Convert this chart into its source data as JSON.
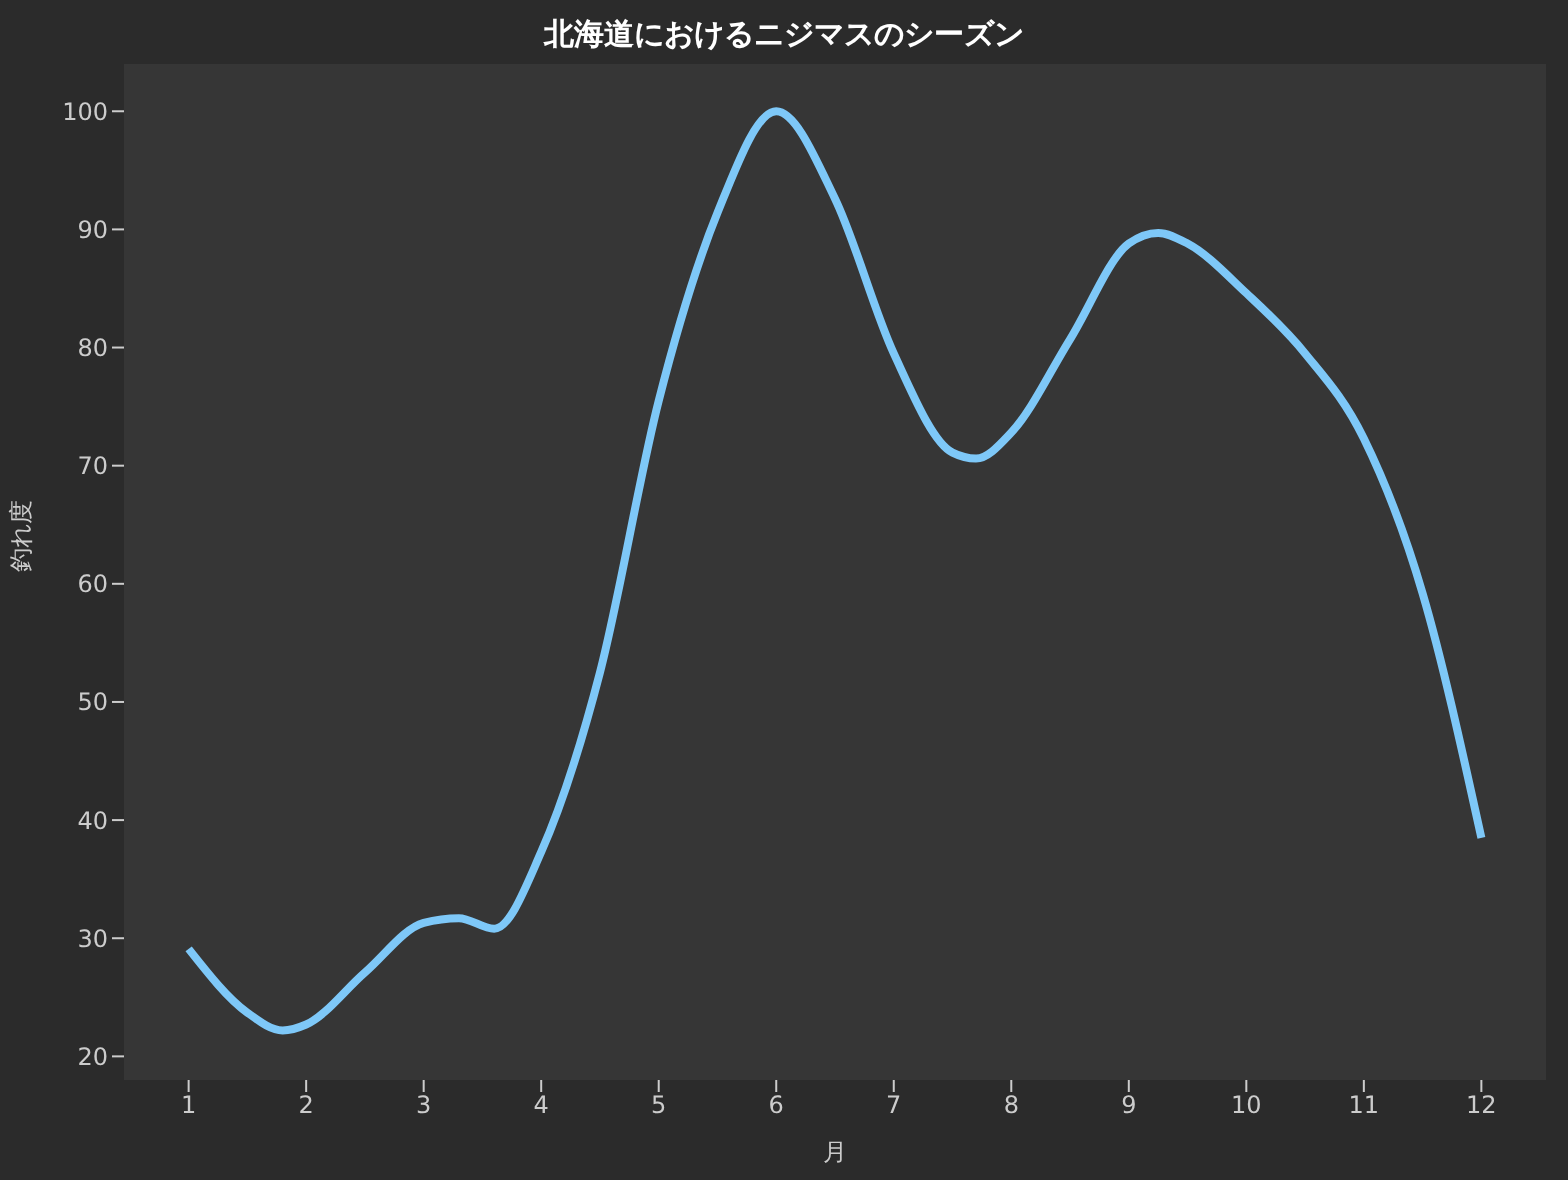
{
  "chart_data": {
    "type": "line",
    "title": "北海道におけるニジマスのシーズン",
    "xlabel": "月",
    "ylabel": "釣れ度",
    "x": [
      1,
      1.5,
      1.8,
      2,
      2.5,
      3,
      3.3,
      3.6,
      4,
      4.5,
      5,
      5.5,
      6,
      6.5,
      7,
      7.5,
      7.7,
      8,
      8.5,
      9,
      9.25,
      9.5,
      10,
      10.5,
      11,
      11.5,
      12
    ],
    "series": [
      {
        "color": "#7ec8f8",
        "values": [
          29.1,
          23.7,
          22.2,
          22.7,
          27.1,
          31.3,
          31.7,
          30.8,
          37.3,
          52.5,
          75.5,
          91.4,
          100,
          92.6,
          79.5,
          71.1,
          70.6,
          72.8,
          80.7,
          88.8,
          89.7,
          88.8,
          84.6,
          79.5,
          72.3,
          59.2,
          38.5
        ]
      }
    ],
    "xlim": [
      0.45,
      12.55
    ],
    "xticks": [
      1,
      2,
      3,
      4,
      5,
      6,
      7,
      8,
      9,
      10,
      11,
      12
    ],
    "ylim": [
      18,
      104
    ],
    "yticks": [
      20,
      30,
      40,
      50,
      60,
      70,
      80,
      90,
      100
    ],
    "grid": false,
    "legend": false,
    "marker": "none",
    "line_style": "solid"
  }
}
